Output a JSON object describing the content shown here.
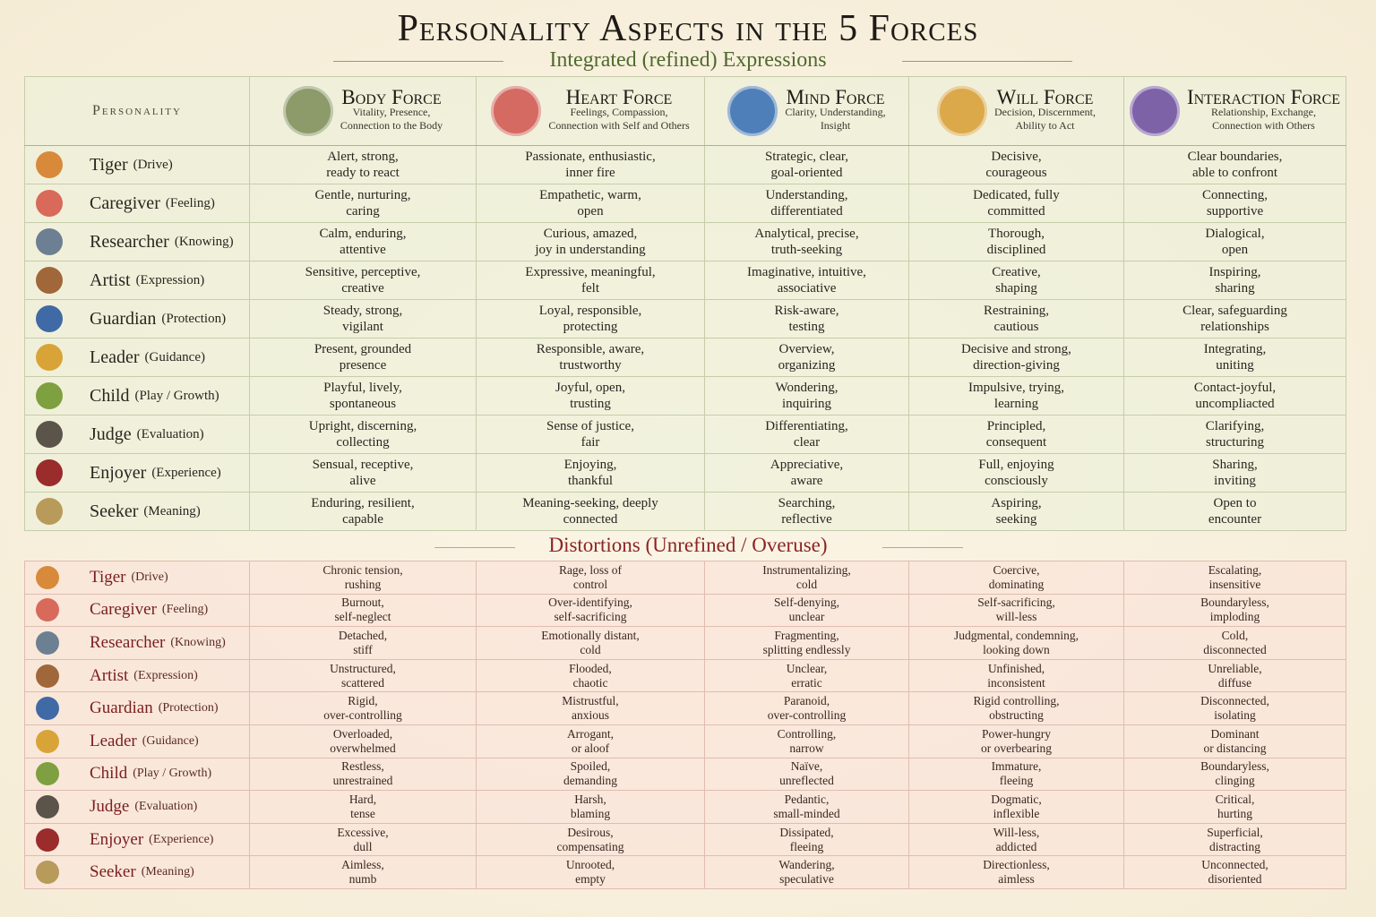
{
  "title": "Personality Aspects in the 5 Forces",
  "subtitle": "Integrated (refined) Expressions",
  "personality_header": "Personality",
  "distortions_title": "Distortions (Unrefined / Overuse)",
  "forces": [
    {
      "name": "Body Force",
      "desc": [
        "Vitality, Presence,",
        "Connection to the Body"
      ]
    },
    {
      "name": "Heart Force",
      "desc": [
        "Feelings, Compassion,",
        "Connection with Self and Others"
      ]
    },
    {
      "name": "Mind Force",
      "desc": [
        "Clarity, Understanding,",
        "Insight"
      ]
    },
    {
      "name": "Will Force",
      "desc": [
        "Decision, Discernment,",
        "Ability to Act"
      ]
    },
    {
      "name": "Interaction Force",
      "desc": [
        "Relationship, Exchange,",
        "Connection with Others"
      ]
    }
  ],
  "personalities": [
    {
      "name": "Tiger",
      "aspect": "(Drive)"
    },
    {
      "name": "Caregiver",
      "aspect": "(Feeling)"
    },
    {
      "name": "Researcher",
      "aspect": "(Knowing)"
    },
    {
      "name": "Artist",
      "aspect": "(Expression)"
    },
    {
      "name": "Guardian",
      "aspect": "(Protection)"
    },
    {
      "name": "Leader",
      "aspect": "(Guidance)"
    },
    {
      "name": "Child",
      "aspect": "(Play / Growth)"
    },
    {
      "name": "Judge",
      "aspect": "(Evaluation)"
    },
    {
      "name": "Enjoyer",
      "aspect": "(Experience)"
    },
    {
      "name": "Seeker",
      "aspect": "(Meaning)"
    }
  ],
  "refined": [
    [
      [
        "Alert, strong,",
        "ready to react"
      ],
      [
        "Passionate, enthusiastic,",
        "inner fire"
      ],
      [
        "Strategic, clear,",
        "goal-oriented"
      ],
      [
        "Decisive,",
        "courageous"
      ],
      [
        "Clear boundaries,",
        "able to confront"
      ]
    ],
    [
      [
        "Gentle, nurturing,",
        "caring"
      ],
      [
        "Empathetic, warm,",
        "open"
      ],
      [
        "Understanding,",
        "differentiated"
      ],
      [
        "Dedicated, fully",
        "committed"
      ],
      [
        "Connecting,",
        "supportive"
      ]
    ],
    [
      [
        "Calm, enduring,",
        "attentive"
      ],
      [
        "Curious, amazed,",
        "joy in understanding"
      ],
      [
        "Analytical, precise,",
        "truth-seeking"
      ],
      [
        "Thorough,",
        "disciplined"
      ],
      [
        "Dialogical,",
        "open"
      ]
    ],
    [
      [
        "Sensitive, perceptive,",
        "creative"
      ],
      [
        "Expressive, meaningful,",
        "felt"
      ],
      [
        "Imaginative, intuitive,",
        "associative"
      ],
      [
        "Creative,",
        "shaping"
      ],
      [
        "Inspiring,",
        "sharing"
      ]
    ],
    [
      [
        "Steady, strong,",
        "vigilant"
      ],
      [
        "Loyal, responsible,",
        "protecting"
      ],
      [
        "Risk-aware,",
        "testing"
      ],
      [
        "Restraining,",
        "cautious"
      ],
      [
        "Clear, safeguarding",
        "relationships"
      ]
    ],
    [
      [
        "Present, grounded",
        "presence"
      ],
      [
        "Responsible, aware,",
        "trustworthy"
      ],
      [
        "Overview,",
        "organizing"
      ],
      [
        "Decisive and strong,",
        "direction-giving"
      ],
      [
        "Integrating,",
        "uniting"
      ]
    ],
    [
      [
        "Playful, lively,",
        "spontaneous"
      ],
      [
        "Joyful, open,",
        "trusting"
      ],
      [
        "Wondering,",
        "inquiring"
      ],
      [
        "Impulsive, trying,",
        "learning"
      ],
      [
        "Contact-joyful,",
        "uncompliacted"
      ]
    ],
    [
      [
        "Upright, discerning,",
        "collecting"
      ],
      [
        "Sense of justice,",
        "fair"
      ],
      [
        "Differentiating,",
        "clear"
      ],
      [
        "Principled,",
        "consequent"
      ],
      [
        "Clarifying,",
        "structuring"
      ]
    ],
    [
      [
        "Sensual, receptive,",
        "alive"
      ],
      [
        "Enjoying,",
        "thankful"
      ],
      [
        "Appreciative,",
        "aware"
      ],
      [
        "Full, enjoying",
        "consciously"
      ],
      [
        "Sharing,",
        "inviting"
      ]
    ],
    [
      [
        "Enduring, resilient,",
        "capable"
      ],
      [
        "Meaning-seeking, deeply",
        "connected"
      ],
      [
        "Searching,",
        "reflective"
      ],
      [
        "Aspiring,",
        "seeking"
      ],
      [
        "Open to",
        "encounter"
      ]
    ]
  ],
  "distortions": [
    [
      [
        "Chronic tension,",
        "rushing"
      ],
      [
        "Rage, loss of",
        "control"
      ],
      [
        "Instrumentalizing,",
        "cold"
      ],
      [
        "Coercive,",
        "dominating"
      ],
      [
        "Escalating,",
        "insensitive"
      ]
    ],
    [
      [
        "Burnout,",
        "self-neglect"
      ],
      [
        "Over-identifying,",
        "self-sacrificing"
      ],
      [
        "Self-denying,",
        "unclear"
      ],
      [
        "Self-sacrificing,",
        "will-less"
      ],
      [
        "Boundaryless,",
        "imploding"
      ]
    ],
    [
      [
        "Detached,",
        "stiff"
      ],
      [
        "Emotionally distant,",
        "cold"
      ],
      [
        "Fragmenting,",
        "splitting endlessly"
      ],
      [
        "Judgmental, condemning,",
        "looking down"
      ],
      [
        "Cold,",
        "disconnected"
      ]
    ],
    [
      [
        "Unstructured,",
        "scattered"
      ],
      [
        "Flooded,",
        "chaotic"
      ],
      [
        "Unclear,",
        "erratic"
      ],
      [
        "Unfinished,",
        "inconsistent"
      ],
      [
        "Unreliable,",
        "diffuse"
      ]
    ],
    [
      [
        "Rigid,",
        "over-controlling"
      ],
      [
        "Mistrustful,",
        "anxious"
      ],
      [
        "Paranoid,",
        "over-controlling"
      ],
      [
        "Rigid controlling,",
        "obstructing"
      ],
      [
        "Disconnected,",
        "isolating"
      ]
    ],
    [
      [
        "Overloaded,",
        "overwhelmed"
      ],
      [
        "Arrogant,",
        "or aloof"
      ],
      [
        "Controlling,",
        "narrow"
      ],
      [
        "Power-hungry",
        "or overbearing"
      ],
      [
        "Dominant",
        "or distancing"
      ]
    ],
    [
      [
        "Restless,",
        "unrestrained"
      ],
      [
        "Spoiled,",
        "demanding"
      ],
      [
        "Naïve,",
        "unreflected"
      ],
      [
        "Immature,",
        "fleeing"
      ],
      [
        "Boundaryless,",
        "clinging"
      ]
    ],
    [
      [
        "Hard,",
        "tense"
      ],
      [
        "Harsh,",
        "blaming"
      ],
      [
        "Pedantic,",
        "small-minded"
      ],
      [
        "Dogmatic,",
        "inflexible"
      ],
      [
        "Critical,",
        "hurting"
      ]
    ],
    [
      [
        "Excessive,",
        "dull"
      ],
      [
        "Desirous,",
        "compensating"
      ],
      [
        "Dissipated,",
        "fleeing"
      ],
      [
        "Will-less,",
        "addicted"
      ],
      [
        "Superficial,",
        "distracting"
      ]
    ],
    [
      [
        "Aimless,",
        "numb"
      ],
      [
        "Unrooted,",
        "empty"
      ],
      [
        "Wandering,",
        "speculative"
      ],
      [
        "Directionless,",
        "aimless"
      ],
      [
        "Unconnected,",
        "disoriented"
      ]
    ]
  ]
}
